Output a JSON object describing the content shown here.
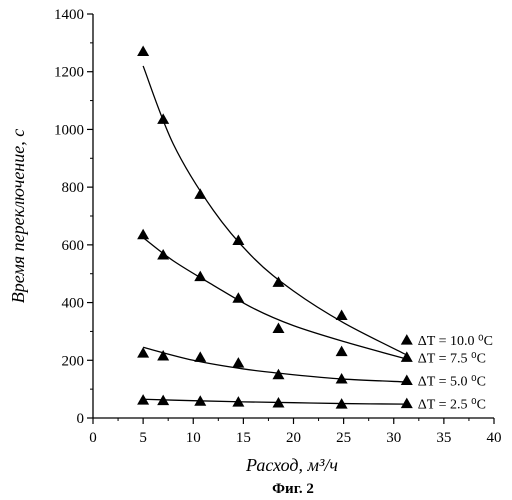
{
  "chart_data": {
    "type": "scatter",
    "xlabel": "Расход, м³/ч",
    "ylabel": "Время переключение, с",
    "caption": "Фиг. 2",
    "xlim": [
      0,
      40
    ],
    "ylim": [
      0,
      1400
    ],
    "xticks": [
      "0",
      "5",
      "10",
      "15",
      "20",
      "25",
      "30",
      "35",
      "40"
    ],
    "yticks": [
      "0",
      "200",
      "400",
      "600",
      "800",
      "1000",
      "1200",
      "1400"
    ],
    "grid": false,
    "legend_position": "right",
    "marker": "triangle",
    "series": [
      {
        "name": "ΔT = 10.0 ⁰C",
        "points": [
          [
            5,
            1270
          ],
          [
            7,
            1035
          ],
          [
            10.7,
            775
          ],
          [
            14.5,
            615
          ],
          [
            18.5,
            470
          ],
          [
            24.8,
            355
          ]
        ],
        "fit": [
          [
            5,
            1220
          ],
          [
            8,
            950
          ],
          [
            12,
            720
          ],
          [
            16,
            555
          ],
          [
            20,
            440
          ],
          [
            25,
            330
          ],
          [
            31.2,
            220
          ]
        ]
      },
      {
        "name": "ΔT = 7.5 ⁰C",
        "points": [
          [
            5,
            635
          ],
          [
            7,
            565
          ],
          [
            10.7,
            490
          ],
          [
            14.5,
            415
          ],
          [
            18.5,
            310
          ],
          [
            24.8,
            230
          ]
        ],
        "fit": [
          [
            5,
            625
          ],
          [
            8,
            545
          ],
          [
            12,
            460
          ],
          [
            16,
            380
          ],
          [
            20,
            320
          ],
          [
            25,
            265
          ],
          [
            31.2,
            205
          ]
        ]
      },
      {
        "name": "ΔT = 5.0 ⁰C",
        "points": [
          [
            5,
            225
          ],
          [
            7,
            215
          ],
          [
            10.7,
            210
          ],
          [
            14.5,
            190
          ],
          [
            18.5,
            150
          ],
          [
            24.8,
            135
          ]
        ],
        "fit": [
          [
            5,
            245
          ],
          [
            10,
            200
          ],
          [
            15,
            170
          ],
          [
            20,
            150
          ],
          [
            25,
            135
          ],
          [
            31.2,
            125
          ]
        ]
      },
      {
        "name": "ΔT = 2.5 ⁰C",
        "points": [
          [
            5,
            62
          ],
          [
            7,
            60
          ],
          [
            10.7,
            58
          ],
          [
            14.5,
            55
          ],
          [
            18.5,
            52
          ],
          [
            24.8,
            48
          ]
        ],
        "fit": [
          [
            5,
            65
          ],
          [
            10,
            60
          ],
          [
            15,
            56
          ],
          [
            20,
            53
          ],
          [
            25,
            50
          ],
          [
            31.2,
            48
          ]
        ]
      }
    ],
    "legend_markers": [
      {
        "series": "ΔT = 10.0 ⁰C",
        "x": 31.3,
        "y": 270
      },
      {
        "series": "ΔT = 7.5 ⁰C",
        "x": 31.3,
        "y": 210
      },
      {
        "series": "ΔT = 5.0 ⁰C",
        "x": 31.3,
        "y": 130
      },
      {
        "series": "ΔT = 2.5 ⁰C",
        "x": 31.3,
        "y": 50
      }
    ]
  }
}
